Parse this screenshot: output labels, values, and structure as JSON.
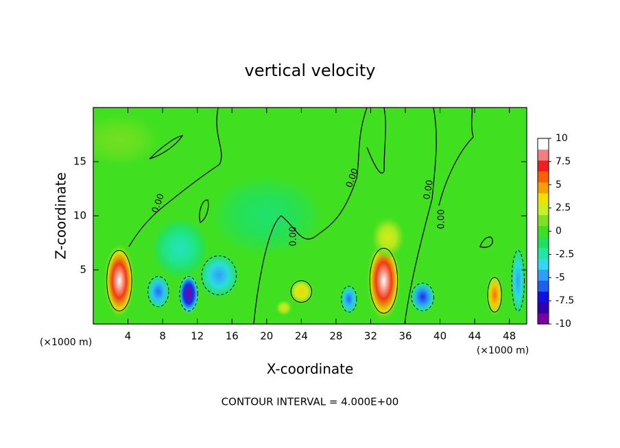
{
  "chart_data": {
    "type": "contour",
    "title": "vertical velocity",
    "xlabel": "X-coordinate",
    "ylabel": "Z-coordinate",
    "x_unit": "(×1000 m)",
    "annotation": "CONTOUR INTERVAL = 4.000E+00",
    "contour_label": "0.00",
    "xlim": [
      0,
      50
    ],
    "xticks": [
      4,
      8,
      12,
      16,
      20,
      24,
      28,
      32,
      36,
      40,
      44,
      48
    ],
    "ylim": [
      0,
      20
    ],
    "yticks": [
      5,
      10,
      15
    ],
    "features": [
      {
        "x": 3,
        "z": 4,
        "value": 10,
        "width": 3.6,
        "height": 7
      },
      {
        "x": 33.5,
        "z": 4,
        "value": 10,
        "width": 4,
        "height": 7.5
      },
      {
        "x": 11,
        "z": 2.8,
        "value": -10,
        "width": 2.6,
        "height": 4
      },
      {
        "x": 7.5,
        "z": 3,
        "value": -6,
        "width": 3,
        "height": 3.5
      },
      {
        "x": 14.5,
        "z": 4.5,
        "value": -5,
        "width": 5,
        "height": 4.5
      },
      {
        "x": 10,
        "z": 7,
        "value": -3,
        "width": 7,
        "height": 6
      },
      {
        "x": 24,
        "z": 3,
        "value": 4,
        "width": 3,
        "height": 2.5
      },
      {
        "x": 22,
        "z": 1.5,
        "value": 3,
        "width": 2,
        "height": 1.5
      },
      {
        "x": 29.5,
        "z": 2.3,
        "value": -6,
        "width": 2.2,
        "height": 3
      },
      {
        "x": 38,
        "z": 2.5,
        "value": -7,
        "width": 3.2,
        "height": 3.2
      },
      {
        "x": 46.3,
        "z": 2.7,
        "value": 6,
        "width": 2,
        "height": 4
      },
      {
        "x": 49,
        "z": 4,
        "value": -5,
        "width": 1.8,
        "height": 7
      },
      {
        "x": 20,
        "z": 10,
        "value": -1.5,
        "width": 14,
        "height": 8
      },
      {
        "x": 34,
        "z": 8,
        "value": 3,
        "width": 4,
        "height": 4
      },
      {
        "x": 3,
        "z": 17,
        "value": 1,
        "width": 10,
        "height": 5
      }
    ],
    "colorbar": {
      "ticks": [
        10,
        7.5,
        5,
        2.5,
        0,
        -2.5,
        -5,
        -7.5,
        -10
      ],
      "colors": [
        "#7b00a0",
        "#3000b0",
        "#1010e0",
        "#1f5ff0",
        "#2e9ff8",
        "#30d8f0",
        "#20e8a0",
        "#20e060",
        "#40e020",
        "#7ee020",
        "#c8f020",
        "#f0e000",
        "#f8a000",
        "#f86000",
        "#f02020",
        "#f08080",
        "#ffffff"
      ]
    }
  }
}
